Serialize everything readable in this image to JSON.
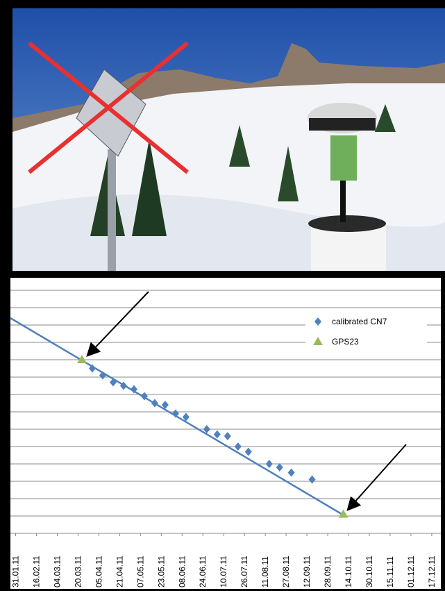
{
  "chart_data": {
    "type": "scatter",
    "xlim": [
      27,
      358
    ],
    "xticks": [
      {
        "value": 31,
        "label": "31.01.11"
      },
      {
        "value": 47,
        "label": "16.02.11"
      },
      {
        "value": 63,
        "label": "04.03.11"
      },
      {
        "value": 79,
        "label": "20.03.11"
      },
      {
        "value": 95,
        "label": "05.04.11"
      },
      {
        "value": 111,
        "label": "21.04.11"
      },
      {
        "value": 127,
        "label": "07.05.11"
      },
      {
        "value": 143,
        "label": "23.05.11"
      },
      {
        "value": 159,
        "label": "08.06.11"
      },
      {
        "value": 175,
        "label": "24.06.11"
      },
      {
        "value": 191,
        "label": "10.07.11"
      },
      {
        "value": 207,
        "label": "26.07.11"
      },
      {
        "value": 223,
        "label": "11.08.11"
      },
      {
        "value": 239,
        "label": "27.08.11"
      },
      {
        "value": 255,
        "label": "12.09.11"
      },
      {
        "value": 271,
        "label": "28.09.11"
      },
      {
        "value": 287,
        "label": "14.10.11"
      },
      {
        "value": 303,
        "label": "30.10.11"
      },
      {
        "value": 319,
        "label": "15.11.11"
      },
      {
        "value": 335,
        "label": "01.12.11"
      },
      {
        "value": 351,
        "label": "17.12.11"
      }
    ],
    "ylim": [
      0,
      14
    ],
    "yticks": [
      0,
      1,
      2,
      3,
      4,
      5,
      6,
      7,
      8,
      9,
      10,
      11,
      12,
      13,
      14
    ],
    "grid": true,
    "legend": "upper right",
    "series": [
      {
        "name": "calibrated CN7",
        "color": "#4f81bd",
        "marker": "diamond",
        "x": [
          90,
          98,
          106,
          114,
          122,
          130,
          138,
          146,
          154,
          162,
          178,
          186,
          194,
          202,
          210,
          226,
          234,
          243,
          259
        ],
        "values": [
          9.5,
          9.1,
          8.7,
          8.5,
          8.3,
          7.9,
          7.5,
          7.4,
          6.9,
          6.7,
          6.0,
          5.7,
          5.6,
          5.0,
          4.7,
          4.0,
          3.8,
          3.5,
          3.1
        ]
      },
      {
        "name": "GPS23",
        "color": "#9bbb59",
        "marker": "triangle",
        "x": [
          82,
          283
        ],
        "values": [
          10.0,
          1.1
        ]
      }
    ],
    "trendline": {
      "color": "#4f81bd",
      "x": [
        27,
        282
      ],
      "values": [
        12.4,
        1.1
      ]
    }
  }
}
